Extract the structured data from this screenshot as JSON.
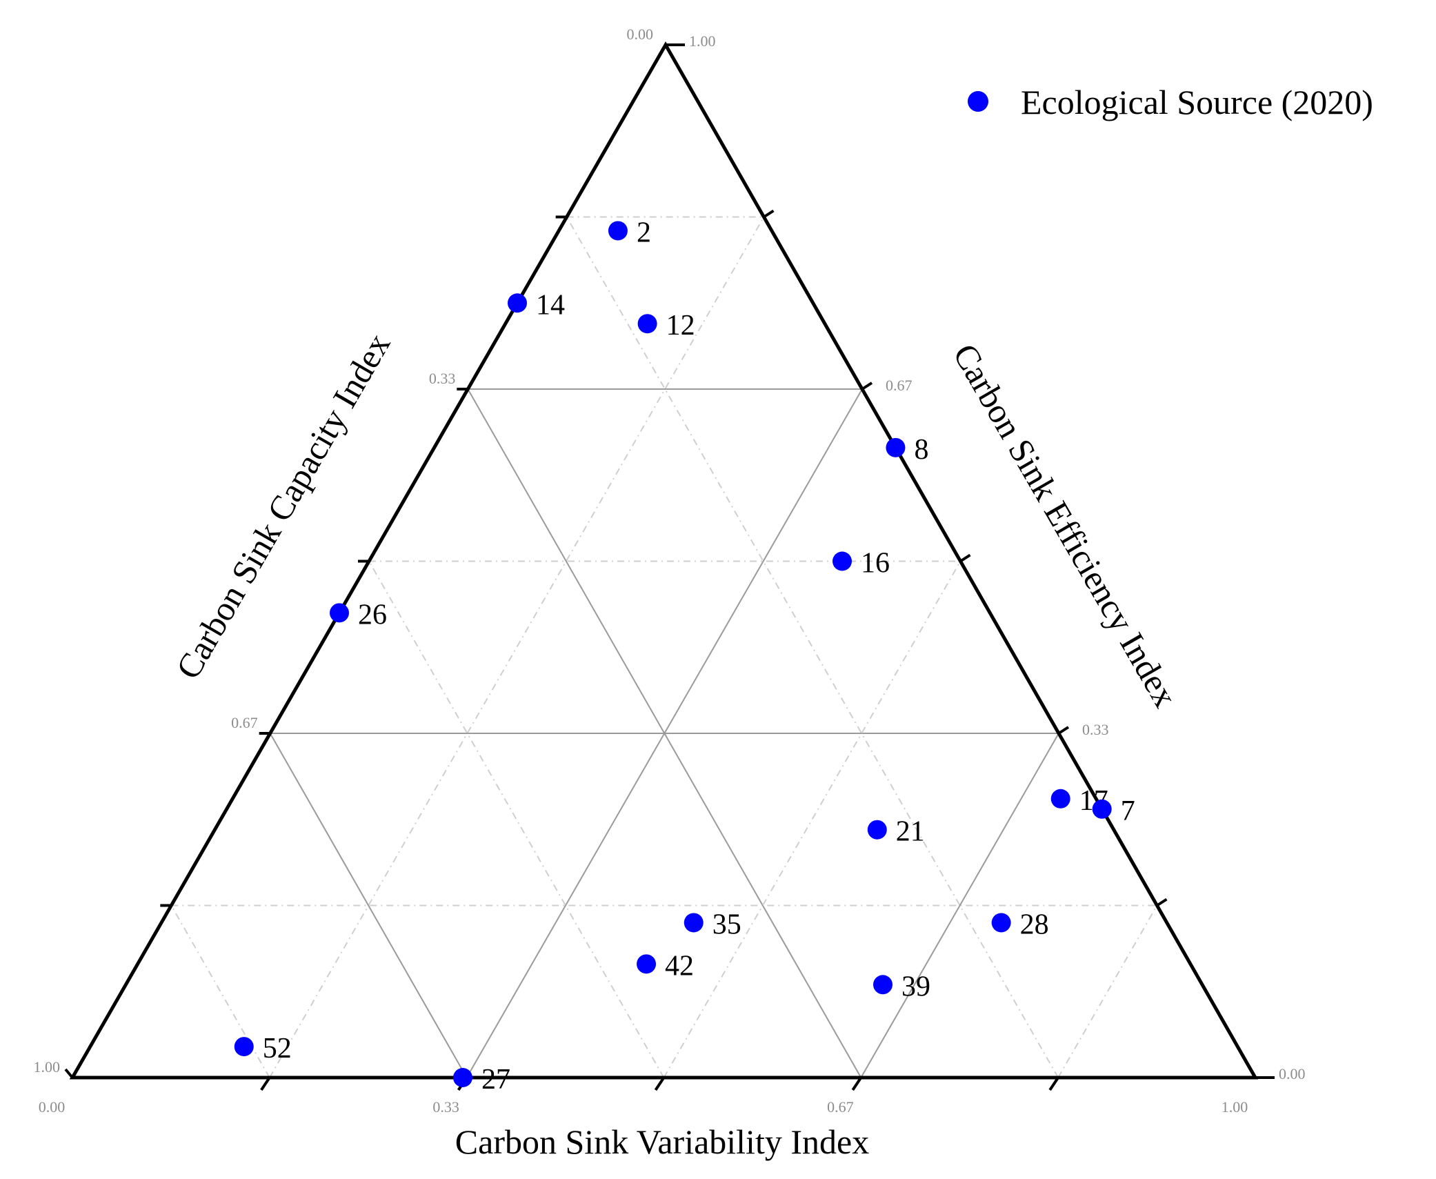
{
  "chart_data": {
    "type": "scatter",
    "subtype": "ternary",
    "legend": {
      "position": "top-right",
      "entries": [
        "Ecological Source (2020)"
      ]
    },
    "axes": {
      "bottom": {
        "title": "Carbon Sink Variability Index",
        "ticks": [
          "0.00",
          "0.33",
          "0.67",
          "1.00"
        ]
      },
      "left": {
        "title": "Carbon Sink Capacity Index",
        "ticks": [
          "0.00",
          "0.33",
          "0.67",
          "1.00"
        ]
      },
      "right": {
        "title": "Carbon Sink Efficiency Index",
        "ticks": [
          "1.00",
          "0.67",
          "0.33",
          "0.00"
        ]
      }
    },
    "grid": true,
    "series": [
      {
        "name": "Ecological Source (2020)",
        "color": "#0000ff",
        "points": [
          {
            "label": "2",
            "variability": 0.05,
            "capacity": 0.13,
            "efficiency": 0.82
          },
          {
            "label": "14",
            "variability": 0.0,
            "capacity": 0.25,
            "efficiency": 0.75
          },
          {
            "label": "12",
            "variability": 0.12,
            "capacity": 0.15,
            "efficiency": 0.73
          },
          {
            "label": "8",
            "variability": 0.39,
            "capacity": 0.0,
            "efficiency": 0.61
          },
          {
            "label": "16",
            "variability": 0.4,
            "capacity": 0.1,
            "efficiency": 0.5
          },
          {
            "label": "26",
            "variability": 0.0,
            "capacity": 0.55,
            "efficiency": 0.45
          },
          {
            "label": "17",
            "variability": 0.7,
            "capacity": 0.03,
            "efficiency": 0.27
          },
          {
            "label": "7",
            "variability": 0.74,
            "capacity": 0.0,
            "efficiency": 0.26
          },
          {
            "label": "21",
            "variability": 0.56,
            "capacity": 0.2,
            "efficiency": 0.24
          },
          {
            "label": "35",
            "variability": 0.45,
            "capacity": 0.4,
            "efficiency": 0.15
          },
          {
            "label": "28",
            "variability": 0.71,
            "capacity": 0.14,
            "efficiency": 0.15
          },
          {
            "label": "42",
            "variability": 0.43,
            "capacity": 0.46,
            "efficiency": 0.11
          },
          {
            "label": "39",
            "variability": 0.64,
            "capacity": 0.27,
            "efficiency": 0.09
          },
          {
            "label": "52",
            "variability": 0.13,
            "capacity": 0.84,
            "efficiency": 0.03
          },
          {
            "label": "27",
            "variability": 0.33,
            "capacity": 0.67,
            "efficiency": 0.0
          }
        ]
      }
    ]
  }
}
